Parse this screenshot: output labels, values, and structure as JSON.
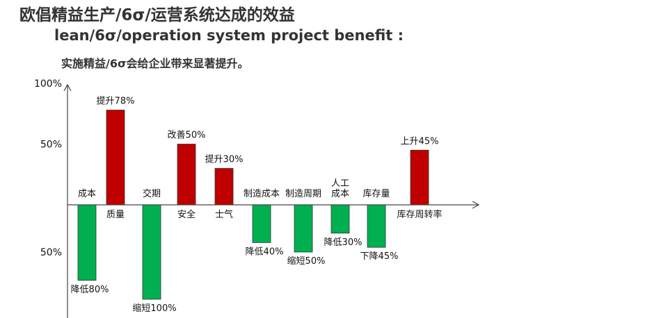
{
  "header": {
    "title": "欧倡精益生产/6σ/运营系统达成的效益",
    "subtitle": "lean/6σ/operation system project benefit :",
    "tagline": "实施精益/6σ会给企业带来显著提升。"
  },
  "chart_data": {
    "type": "bar",
    "colors": {
      "increase": "#c00000",
      "decrease": "#00b050"
    },
    "y_ticks": [
      {
        "label": "100%",
        "value": 100
      },
      {
        "label": "50%",
        "value": 50
      },
      {
        "label": "50%",
        "value": -50
      }
    ],
    "ylim": [
      -100,
      100
    ],
    "bars": [
      {
        "category": "成本",
        "value": -80,
        "label": "降低80%"
      },
      {
        "category": "质量",
        "value": 78,
        "label": "提升78%"
      },
      {
        "category": "交期",
        "value": -100,
        "label": "缩短100%"
      },
      {
        "category": "安全",
        "value": 50,
        "label": "改善50%"
      },
      {
        "category": "士气",
        "value": 30,
        "label": "提升30%"
      },
      {
        "category": "制造成本",
        "value": -40,
        "label": "降低40%"
      },
      {
        "category": "制造周期",
        "value": -50,
        "label": "缩短50%"
      },
      {
        "category": "人工\n成本",
        "value": -30,
        "label": "降低30%"
      },
      {
        "category": "库存量",
        "value": -45,
        "label": "下降45%"
      },
      {
        "category": "库存周转率",
        "value": 45,
        "label": "上升45%"
      }
    ]
  }
}
